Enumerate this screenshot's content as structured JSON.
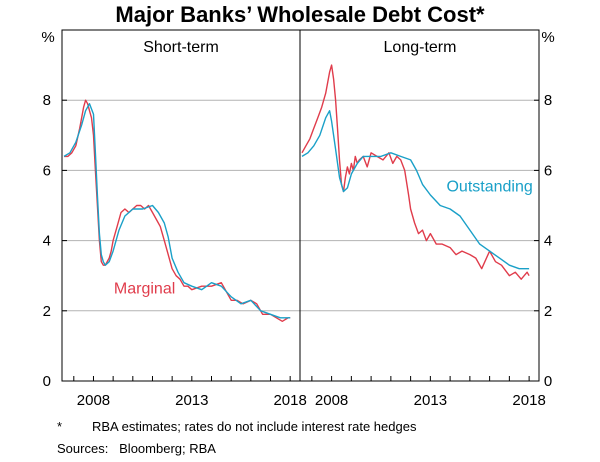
{
  "chart_data": {
    "type": "line",
    "title": "Major Banks’ Wholesale Debt Cost*",
    "y_unit": "%",
    "ylim": [
      0,
      10
    ],
    "yticks": [
      0,
      2,
      4,
      6,
      8
    ],
    "grid": true,
    "panels": [
      {
        "title": "Short-term",
        "xlim": [
          2006.4,
          2018.5
        ],
        "xticks": [
          2008,
          2013,
          2018
        ],
        "series": [
          {
            "name": "Marginal",
            "color": "#e03c4b",
            "x": [
              2006.5,
              2006.7,
              2006.9,
              2007.1,
              2007.3,
              2007.5,
              2007.6,
              2007.7,
              2007.8,
              2007.9,
              2008.0,
              2008.1,
              2008.2,
              2008.3,
              2008.4,
              2008.5,
              2008.6,
              2008.7,
              2008.8,
              2008.9,
              2009.0,
              2009.2,
              2009.4,
              2009.6,
              2009.8,
              2010.0,
              2010.2,
              2010.4,
              2010.6,
              2010.8,
              2011.0,
              2011.2,
              2011.4,
              2011.6,
              2011.8,
              2012.0,
              2012.2,
              2012.4,
              2012.6,
              2012.8,
              2013.0,
              2013.5,
              2014.0,
              2014.5,
              2015.0,
              2015.3,
              2015.6,
              2016.0,
              2016.3,
              2016.6,
              2017.0,
              2017.3,
              2017.6,
              2017.9,
              2018.0
            ],
            "y": [
              6.4,
              6.4,
              6.5,
              6.7,
              7.2,
              7.8,
              8.0,
              7.9,
              7.7,
              7.5,
              7.0,
              6.0,
              5.0,
              4.0,
              3.4,
              3.3,
              3.3,
              3.4,
              3.5,
              3.7,
              4.0,
              4.4,
              4.8,
              4.9,
              4.8,
              4.9,
              5.0,
              5.0,
              4.9,
              5.0,
              4.8,
              4.6,
              4.4,
              4.0,
              3.6,
              3.2,
              3.0,
              2.9,
              2.7,
              2.7,
              2.6,
              2.7,
              2.7,
              2.8,
              2.3,
              2.3,
              2.2,
              2.3,
              2.2,
              1.9,
              1.9,
              1.8,
              1.7,
              1.8,
              1.8
            ]
          },
          {
            "name": "Outstanding",
            "color": "#1aa0c8",
            "x": [
              2006.5,
              2006.8,
              2007.1,
              2007.4,
              2007.6,
              2007.8,
              2008.0,
              2008.1,
              2008.2,
              2008.3,
              2008.4,
              2008.5,
              2008.6,
              2008.8,
              2009.0,
              2009.3,
              2009.6,
              2010.0,
              2010.5,
              2011.0,
              2011.3,
              2011.6,
              2011.8,
              2012.0,
              2012.3,
              2012.6,
              2013.0,
              2013.5,
              2014.0,
              2014.5,
              2015.0,
              2015.5,
              2016.0,
              2016.5,
              2017.0,
              2017.5,
              2018.0
            ],
            "y": [
              6.4,
              6.5,
              6.8,
              7.3,
              7.7,
              7.9,
              7.6,
              6.5,
              5.3,
              4.2,
              3.6,
              3.4,
              3.3,
              3.4,
              3.7,
              4.3,
              4.7,
              4.9,
              4.9,
              5.0,
              4.8,
              4.5,
              4.1,
              3.5,
              3.1,
              2.8,
              2.7,
              2.6,
              2.8,
              2.7,
              2.4,
              2.2,
              2.3,
              2.0,
              1.9,
              1.8,
              1.8
            ]
          }
        ]
      },
      {
        "title": "Long-term",
        "xlim": [
          2006.4,
          2018.5
        ],
        "xticks": [
          2008,
          2013,
          2018
        ],
        "series": [
          {
            "name": "Marginal",
            "color": "#e03c4b",
            "x": [
              2006.5,
              2006.7,
              2006.9,
              2007.1,
              2007.3,
              2007.5,
              2007.7,
              2007.9,
              2008.0,
              2008.1,
              2008.2,
              2008.3,
              2008.4,
              2008.5,
              2008.6,
              2008.7,
              2008.8,
              2008.9,
              2009.0,
              2009.1,
              2009.2,
              2009.3,
              2009.4,
              2009.6,
              2009.8,
              2010.0,
              2010.3,
              2010.6,
              2010.9,
              2011.1,
              2011.3,
              2011.5,
              2011.7,
              2011.9,
              2012.0,
              2012.2,
              2012.4,
              2012.6,
              2012.8,
              2013.0,
              2013.3,
              2013.6,
              2014.0,
              2014.3,
              2014.6,
              2015.0,
              2015.3,
              2015.6,
              2016.0,
              2016.3,
              2016.6,
              2017.0,
              2017.3,
              2017.6,
              2017.9,
              2018.0
            ],
            "y": [
              6.5,
              6.7,
              6.9,
              7.2,
              7.5,
              7.8,
              8.2,
              8.8,
              9.0,
              8.6,
              8.0,
              7.2,
              6.3,
              5.6,
              5.4,
              5.8,
              6.1,
              5.9,
              6.2,
              6.0,
              6.4,
              6.2,
              6.3,
              6.4,
              6.1,
              6.5,
              6.4,
              6.3,
              6.5,
              6.2,
              6.4,
              6.3,
              6.0,
              5.3,
              4.9,
              4.5,
              4.2,
              4.3,
              4.0,
              4.2,
              3.9,
              3.9,
              3.8,
              3.6,
              3.7,
              3.6,
              3.5,
              3.2,
              3.7,
              3.4,
              3.3,
              3.0,
              3.1,
              2.9,
              3.1,
              3.0
            ]
          },
          {
            "name": "Outstanding",
            "color": "#1aa0c8",
            "x": [
              2006.5,
              2006.8,
              2007.1,
              2007.4,
              2007.7,
              2007.9,
              2008.0,
              2008.2,
              2008.4,
              2008.6,
              2008.8,
              2009.0,
              2009.3,
              2009.6,
              2010.0,
              2010.5,
              2011.0,
              2011.5,
              2012.0,
              2012.3,
              2012.6,
              2013.0,
              2013.5,
              2014.0,
              2014.5,
              2015.0,
              2015.5,
              2016.0,
              2016.5,
              2017.0,
              2017.5,
              2018.0
            ],
            "y": [
              6.4,
              6.5,
              6.7,
              7.0,
              7.5,
              7.7,
              7.4,
              6.6,
              5.8,
              5.4,
              5.5,
              5.9,
              6.2,
              6.4,
              6.4,
              6.4,
              6.5,
              6.4,
              6.3,
              6.0,
              5.6,
              5.3,
              5.0,
              4.9,
              4.7,
              4.3,
              3.9,
              3.7,
              3.5,
              3.3,
              3.2,
              3.2
            ]
          }
        ]
      }
    ],
    "annotations": [
      {
        "text": "Marginal",
        "panel": 0,
        "x": 2010.6,
        "y": 2.5,
        "color": "#e03c4b"
      },
      {
        "text": "Outstanding",
        "panel": 1,
        "x": 2016.0,
        "y": 5.4,
        "color": "#1aa0c8"
      }
    ],
    "footnote_marker": "*",
    "footnote": "RBA estimates; rates do not include interest rate hedges",
    "sources": "Sources:   Bloomberg; RBA"
  }
}
